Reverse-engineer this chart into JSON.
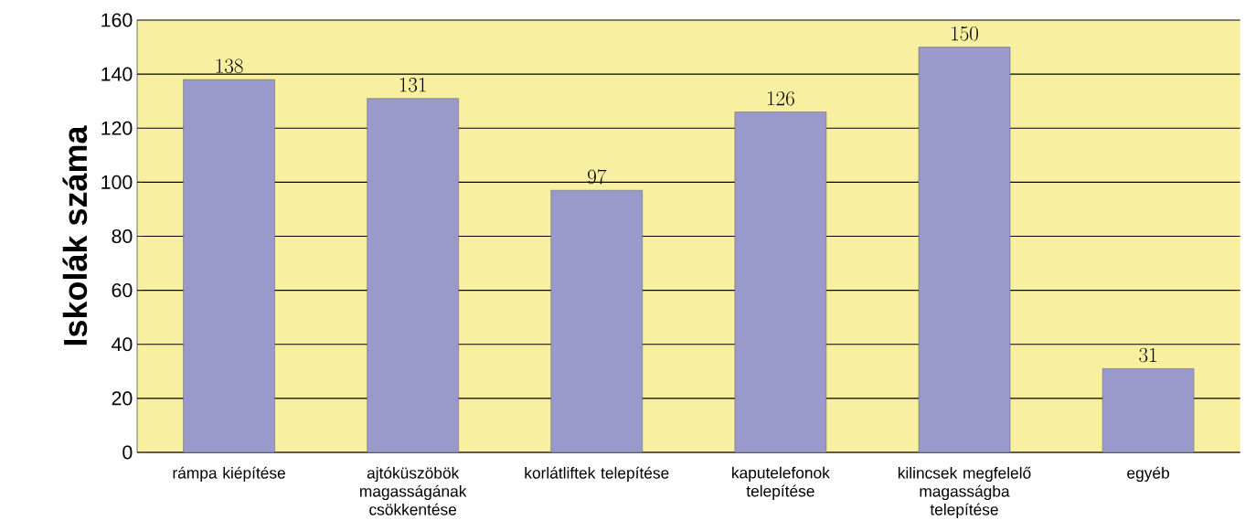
{
  "chart_data": {
    "type": "bar",
    "ylabel": "Iskolák száma",
    "categories": [
      "rámpa kiépítése",
      "ajtóküszöbök magasságának csökkentése",
      "korlátliftek telepítése",
      "kaputelefonok telepítése",
      "kilincsek megfelelő magasságba telepítése",
      "egyéb"
    ],
    "values": [
      138,
      131,
      97,
      126,
      150,
      31
    ],
    "color": "#9999cc",
    "ylim": [
      0,
      160
    ],
    "yticks": [
      0,
      20,
      40,
      60,
      80,
      100,
      120,
      140,
      160
    ],
    "grid": "y",
    "data_labels": true
  }
}
